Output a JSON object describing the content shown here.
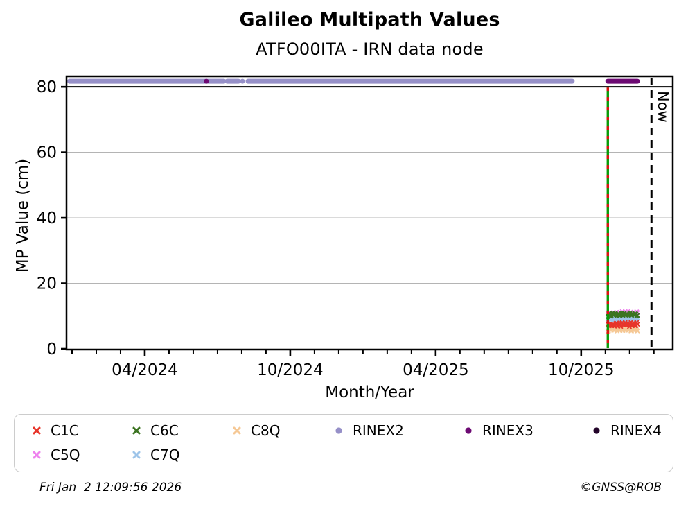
{
  "footer": {
    "timestamp": "Fri Jan  2 12:09:56 2026",
    "credit": "©GNSS@ROB"
  },
  "chart_data": {
    "type": "scatter",
    "title": "Galileo Multipath Values",
    "subtitle": "ATFO00ITA - IRN data node",
    "xlabel": "Month/Year",
    "ylabel": "MP Value (cm)",
    "x_unit": "months since 2024-01-01",
    "x_domain": [
      -0.2,
      24.75
    ],
    "y_domain": [
      0,
      83
    ],
    "y_ticks": [
      0,
      20,
      40,
      60,
      80
    ],
    "y_gridlines": [
      20,
      40,
      60
    ],
    "x_major_ticks": [
      {
        "t": 3,
        "label": "04/2024"
      },
      {
        "t": 9,
        "label": "10/2024"
      },
      {
        "t": 15,
        "label": "04/2025"
      },
      {
        "t": 21,
        "label": "10/2025"
      }
    ],
    "x_minor_tick_range": [
      0,
      24
    ],
    "threshold_line_y": 80,
    "availability_y": 81.7,
    "availability": [
      {
        "name": "RINEX2",
        "color": "#9690c8",
        "segments": [
          [
            -0.1,
            6.26
          ],
          [
            6.4,
            6.86
          ],
          [
            7.26,
            20.63
          ]
        ],
        "dots": [
          7.03
        ]
      },
      {
        "name": "RINEX3",
        "color": "#6d0a73",
        "segments": [
          [
            22.1,
            23.32
          ]
        ],
        "dots": [
          5.54
        ]
      },
      {
        "name": "RINEX4",
        "color": "#23042a",
        "segments": [],
        "dots": []
      }
    ],
    "events": {
      "change_line": {
        "t": 22.1,
        "line_color": "#089c08",
        "dash_color": "#dd1111"
      },
      "now_line": {
        "t": 23.9,
        "label": "Now"
      }
    },
    "series": [
      {
        "name": "C1C",
        "color": "#e7352a",
        "t_start": 22.1,
        "t_end": 23.32,
        "mean_cm": 7.4,
        "spread_cm": 0.6,
        "z": 4
      },
      {
        "name": "C5Q",
        "color": "#ee82ee",
        "t_start": 22.1,
        "t_end": 23.32,
        "mean_cm": 10.6,
        "spread_cm": 0.7,
        "z": 1
      },
      {
        "name": "C6C",
        "color": "#3c7422",
        "t_start": 22.1,
        "t_end": 23.32,
        "mean_cm": 10.4,
        "spread_cm": 0.5,
        "z": 5
      },
      {
        "name": "C7Q",
        "color": "#9dc4e9",
        "t_start": 22.1,
        "t_end": 23.32,
        "mean_cm": 9.1,
        "spread_cm": 0.5,
        "z": 3
      },
      {
        "name": "C8Q",
        "color": "#f5c895",
        "t_start": 22.1,
        "t_end": 23.32,
        "mean_cm": 5.9,
        "spread_cm": 0.55,
        "z": 2
      }
    ],
    "legend": [
      {
        "label": "C1C",
        "marker": "x",
        "color": "#e7352a"
      },
      {
        "label": "C6C",
        "marker": "x",
        "color": "#3c7422"
      },
      {
        "label": "C8Q",
        "marker": "x",
        "color": "#f5c895"
      },
      {
        "label": "RINEX2",
        "marker": "circle",
        "color": "#9690c8"
      },
      {
        "label": "RINEX3",
        "marker": "circle",
        "color": "#6d0a73"
      },
      {
        "label": "RINEX4",
        "marker": "circle",
        "color": "#23042a"
      },
      {
        "label": "C5Q",
        "marker": "x",
        "color": "#ee82ee"
      },
      {
        "label": "C7Q",
        "marker": "x",
        "color": "#9dc4e9"
      }
    ]
  }
}
